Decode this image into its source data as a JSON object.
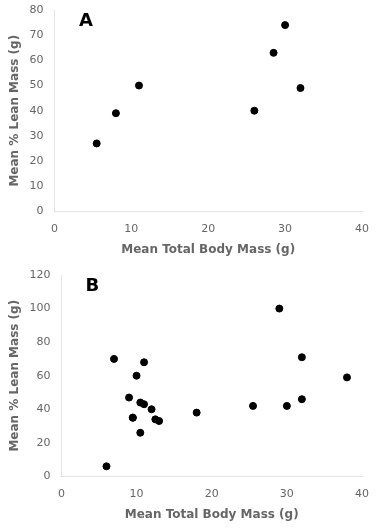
{
  "chart_data": [
    {
      "type": "scatter",
      "annotation": "A",
      "x": [
        5.5,
        8.0,
        11.0,
        26.0,
        28.5,
        30.0,
        32.0
      ],
      "values": [
        27.0,
        39.0,
        50.0,
        40.0,
        63.0,
        74.0,
        49.0
      ],
      "color": "#000000",
      "xlim": [
        0,
        40
      ],
      "ylim": [
        0,
        80
      ],
      "xticks": [
        0,
        10,
        20,
        30,
        40
      ],
      "yticks": [
        0,
        10,
        20,
        30,
        40,
        50,
        60,
        70,
        80
      ],
      "x_label": "Mean Total Body Mass (g)",
      "y_label": "Mean % Lean Mass (g)",
      "grid": false
    },
    {
      "type": "scatter",
      "annotation": "B",
      "x": [
        6.0,
        7.0,
        9.0,
        9.5,
        9.5,
        10.0,
        10.5,
        10.5,
        11.0,
        11.0,
        12.0,
        12.5,
        13.0,
        18.0,
        25.5,
        29.0,
        30.0,
        32.0,
        32.0,
        38.0
      ],
      "values": [
        6.0,
        70.0,
        47.0,
        35.0,
        35.0,
        60.0,
        44.0,
        26.0,
        43.0,
        68.0,
        40.0,
        34.0,
        33.0,
        38.0,
        42.0,
        100.0,
        42.0,
        46.0,
        71.0,
        59.0
      ],
      "color": "#000000",
      "xlim": [
        0,
        40
      ],
      "ylim": [
        0,
        120
      ],
      "xticks": [
        0,
        10,
        20,
        30,
        40
      ],
      "yticks": [
        0,
        20,
        40,
        60,
        80,
        100,
        120
      ],
      "x_label": "Mean Total Body Mass (g)",
      "y_label": "Mean % Lean Mass (g)",
      "grid": false
    }
  ]
}
